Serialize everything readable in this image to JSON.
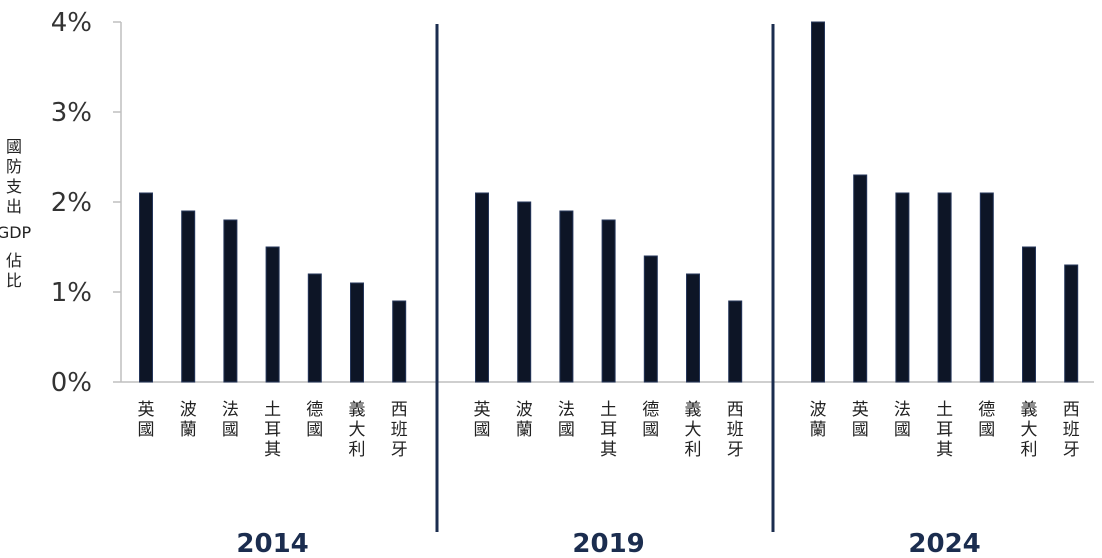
{
  "chart_data": {
    "type": "bar",
    "ylabel": "國防支出 GDP 佔比",
    "y_ticks": [
      "0%",
      "1%",
      "2%",
      "3%",
      "4%"
    ],
    "ylim": [
      0,
      4
    ],
    "y_unit": "%",
    "grid": false,
    "legend": "none",
    "bar_color": "#0d1526",
    "bar_edge_color": "#25365a",
    "divider_color": "#1b2d4f",
    "groups": [
      {
        "label": "2014",
        "categories": [
          "英國",
          "波蘭",
          "法國",
          "土耳其",
          "德國",
          "義大利",
          "西班牙"
        ],
        "values": [
          2.1,
          1.9,
          1.8,
          1.5,
          1.2,
          1.1,
          0.9
        ]
      },
      {
        "label": "2019",
        "categories": [
          "英國",
          "波蘭",
          "法國",
          "土耳其",
          "德國",
          "義大利",
          "西班牙"
        ],
        "values": [
          2.1,
          2.0,
          1.9,
          1.8,
          1.4,
          1.2,
          0.9
        ]
      },
      {
        "label": "2024",
        "categories": [
          "波蘭",
          "英國",
          "法國",
          "土耳其",
          "德國",
          "義大利",
          "西班牙"
        ],
        "values": [
          4.0,
          2.3,
          2.1,
          2.1,
          2.1,
          1.5,
          1.3
        ]
      }
    ]
  }
}
